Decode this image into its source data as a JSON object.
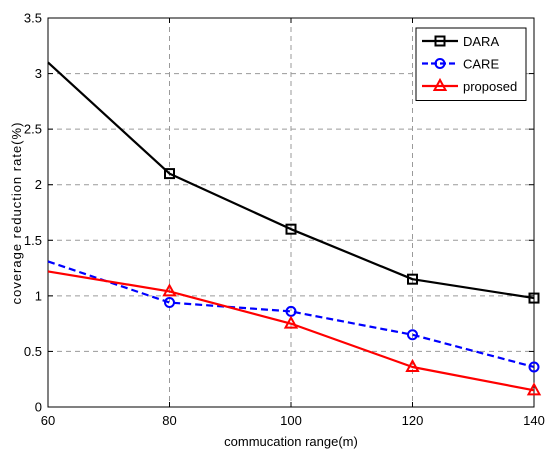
{
  "chart_data": {
    "type": "line",
    "title": "",
    "xlabel": "commucation range(m)",
    "ylabel": "coverage reduction rate(%)",
    "x": [
      60,
      80,
      100,
      120,
      140
    ],
    "x_ticks": [
      "60",
      "80",
      "100",
      "120",
      "140"
    ],
    "y_ticks": [
      "0",
      "0.5",
      "1",
      "1.5",
      "2",
      "2.5",
      "3",
      "3.5"
    ],
    "xlim": [
      60,
      140
    ],
    "ylim": [
      0,
      3.5
    ],
    "grid": true,
    "legend_position": "top-right",
    "series": [
      {
        "name": "DARA",
        "values": [
          3.1,
          2.1,
          1.6,
          1.15,
          0.98
        ],
        "color": "#000000",
        "line_style": "solid",
        "marker": "square",
        "markers_at": [
          80,
          100,
          120,
          140
        ]
      },
      {
        "name": "CARE",
        "values": [
          1.31,
          0.94,
          0.86,
          0.65,
          0.36
        ],
        "color": "#0000ff",
        "line_style": "dashed",
        "marker": "circle",
        "markers_at": [
          80,
          100,
          120,
          140
        ]
      },
      {
        "name": "proposed",
        "values": [
          1.22,
          1.04,
          0.75,
          0.36,
          0.15
        ],
        "color": "#ff0000",
        "line_style": "solid",
        "marker": "triangle",
        "markers_at": [
          80,
          100,
          120,
          140
        ]
      }
    ]
  }
}
